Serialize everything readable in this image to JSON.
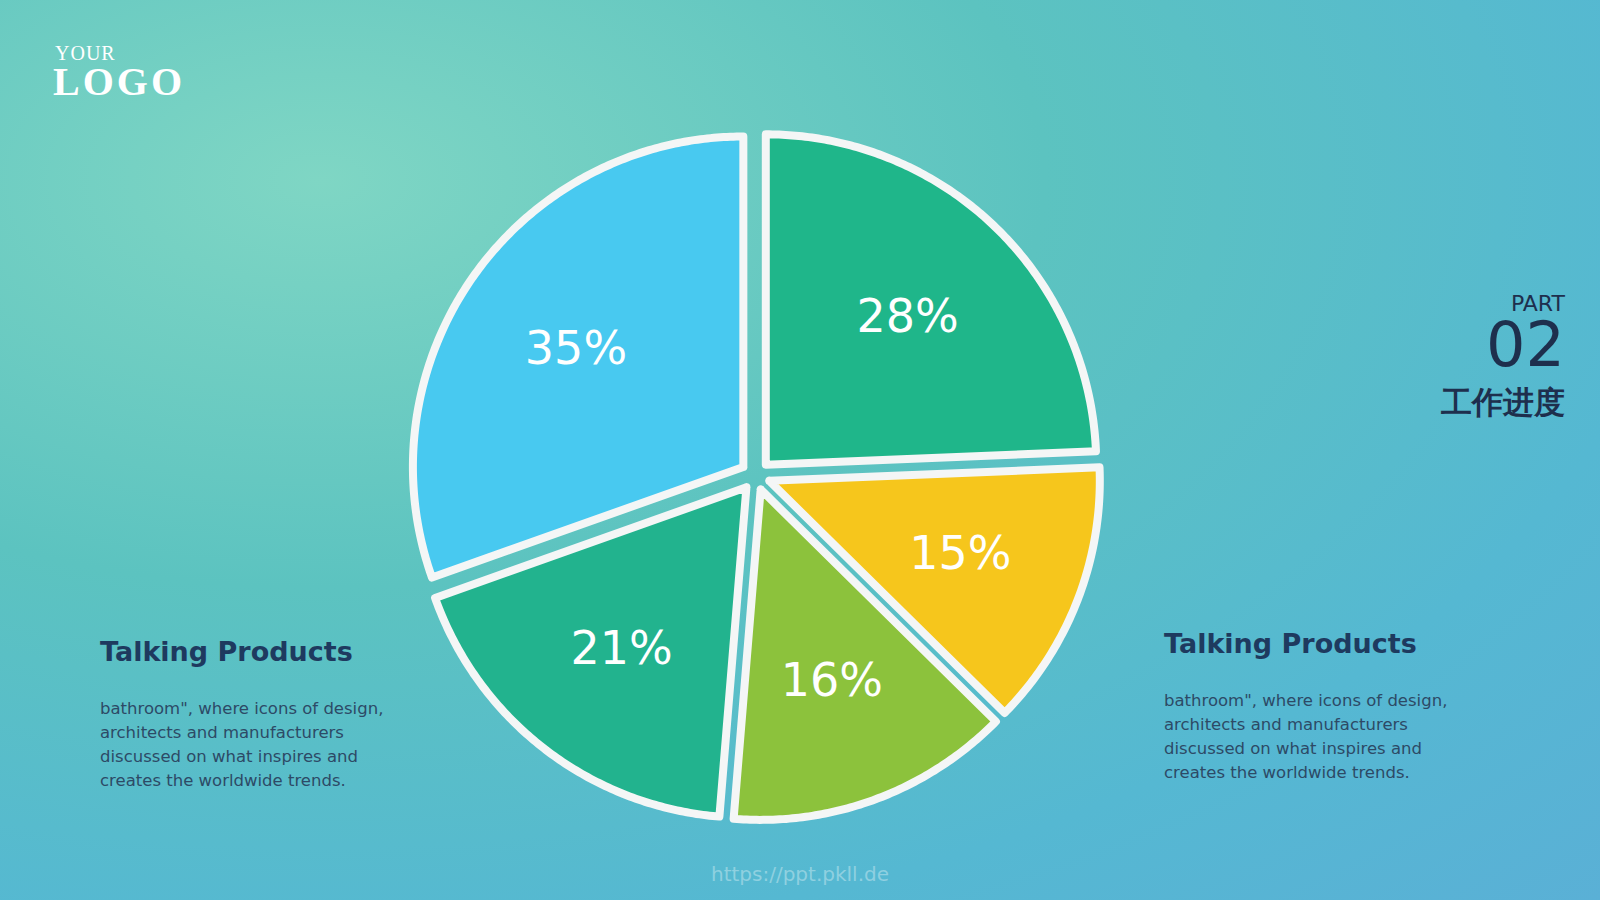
{
  "chart_data": {
    "type": "pie",
    "categories": [
      null,
      null,
      null,
      null,
      null
    ],
    "values": [
      28,
      15,
      16,
      21,
      35
    ],
    "value_labels": [
      "28%",
      "15%",
      "16%",
      "21%",
      "35%"
    ],
    "colors": [
      "#1fb68a",
      "#f6c61c",
      "#8cc23c",
      "#22b38e",
      "#48c9f0"
    ],
    "data_labels": true
  },
  "logo": {
    "small": "YOUR",
    "large": "LOGO"
  },
  "section": {
    "word": "PART",
    "number": "02",
    "title": "工作进度"
  },
  "notes": [
    {
      "title": "Talking Products",
      "lines": [
        "bathroom\", where icons of design,",
        "architects and manufacturers",
        "discussed on what inspires and",
        "creates the worldwide trends."
      ]
    },
    {
      "title": "Talking Products",
      "lines": [
        "bathroom\", where icons of design,",
        "architects and manufacturers",
        "discussed on what inspires and",
        "creates the worldwide trends."
      ]
    }
  ],
  "watermark": "https://ppt.pkll.de"
}
